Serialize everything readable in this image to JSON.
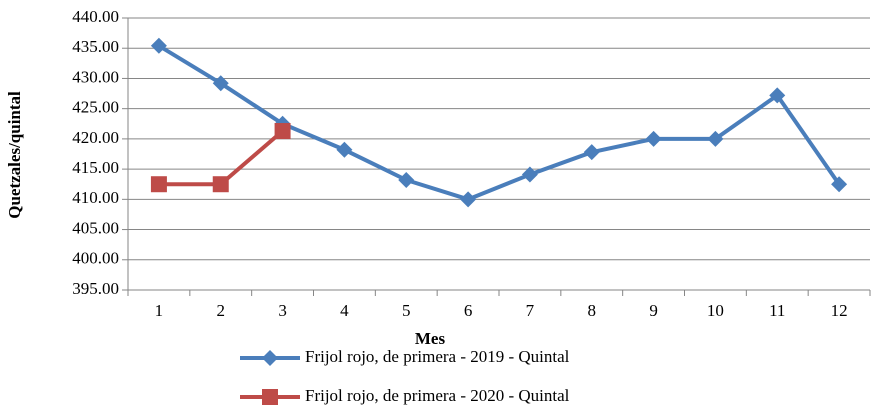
{
  "chart_data": {
    "type": "line",
    "xlabel": "Mes",
    "ylabel": "Quetzales/quintal",
    "categories": [
      "1",
      "2",
      "3",
      "4",
      "5",
      "6",
      "7",
      "8",
      "9",
      "10",
      "11",
      "12"
    ],
    "series": [
      {
        "name": "Frijol rojo, de primera - 2019 - Quintal",
        "color": "#4a7ebb",
        "marker": "diamond",
        "values": [
          435.4,
          429.2,
          422.5,
          418.2,
          413.2,
          410.0,
          414.1,
          417.8,
          420.0,
          420.0,
          427.2,
          412.5
        ]
      },
      {
        "name": "Frijol rojo, de primera - 2020 - Quintal",
        "color": "#be4b48",
        "marker": "square",
        "values": [
          412.5,
          412.5,
          421.3,
          null,
          null,
          null,
          null,
          null,
          null,
          null,
          null,
          null
        ]
      }
    ],
    "ylim": [
      395,
      440
    ],
    "yticks": [
      {
        "value": 395,
        "label": "395.00"
      },
      {
        "value": 400,
        "label": "400.00"
      },
      {
        "value": 405,
        "label": "405.00"
      },
      {
        "value": 410,
        "label": "410.00"
      },
      {
        "value": 415,
        "label": "415.00"
      },
      {
        "value": 420,
        "label": "420.00"
      },
      {
        "value": 425,
        "label": "425.00"
      },
      {
        "value": 430,
        "label": "430.00"
      },
      {
        "value": 435,
        "label": "435.00"
      },
      {
        "value": 440,
        "label": "440.00"
      }
    ],
    "grid": true
  }
}
